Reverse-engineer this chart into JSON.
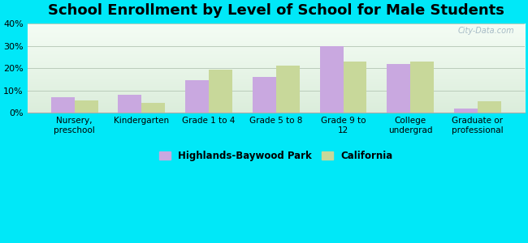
{
  "title": "School Enrollment by Level of School for Male Students",
  "categories": [
    "Nursery,\npreschool",
    "Kindergarten",
    "Grade 1 to 4",
    "Grade 5 to 8",
    "Grade 9 to\n12",
    "College\nundergrad",
    "Graduate or\nprofessional"
  ],
  "highlands": [
    7.0,
    8.0,
    14.5,
    16.0,
    30.0,
    22.0,
    2.0
  ],
  "california": [
    5.5,
    4.5,
    19.5,
    21.0,
    23.0,
    23.0,
    5.0
  ],
  "highlands_color": "#c9a8e0",
  "california_color": "#c8d89a",
  "background_outer": "#00e8f8",
  "ylim": [
    0,
    40
  ],
  "yticks": [
    0,
    10,
    20,
    30,
    40
  ],
  "legend_labels": [
    "Highlands-Baywood Park",
    "California"
  ],
  "title_fontsize": 13,
  "watermark": "City-Data.com",
  "grid_color": "#ccddcc",
  "spine_color": "#aaaaaa"
}
